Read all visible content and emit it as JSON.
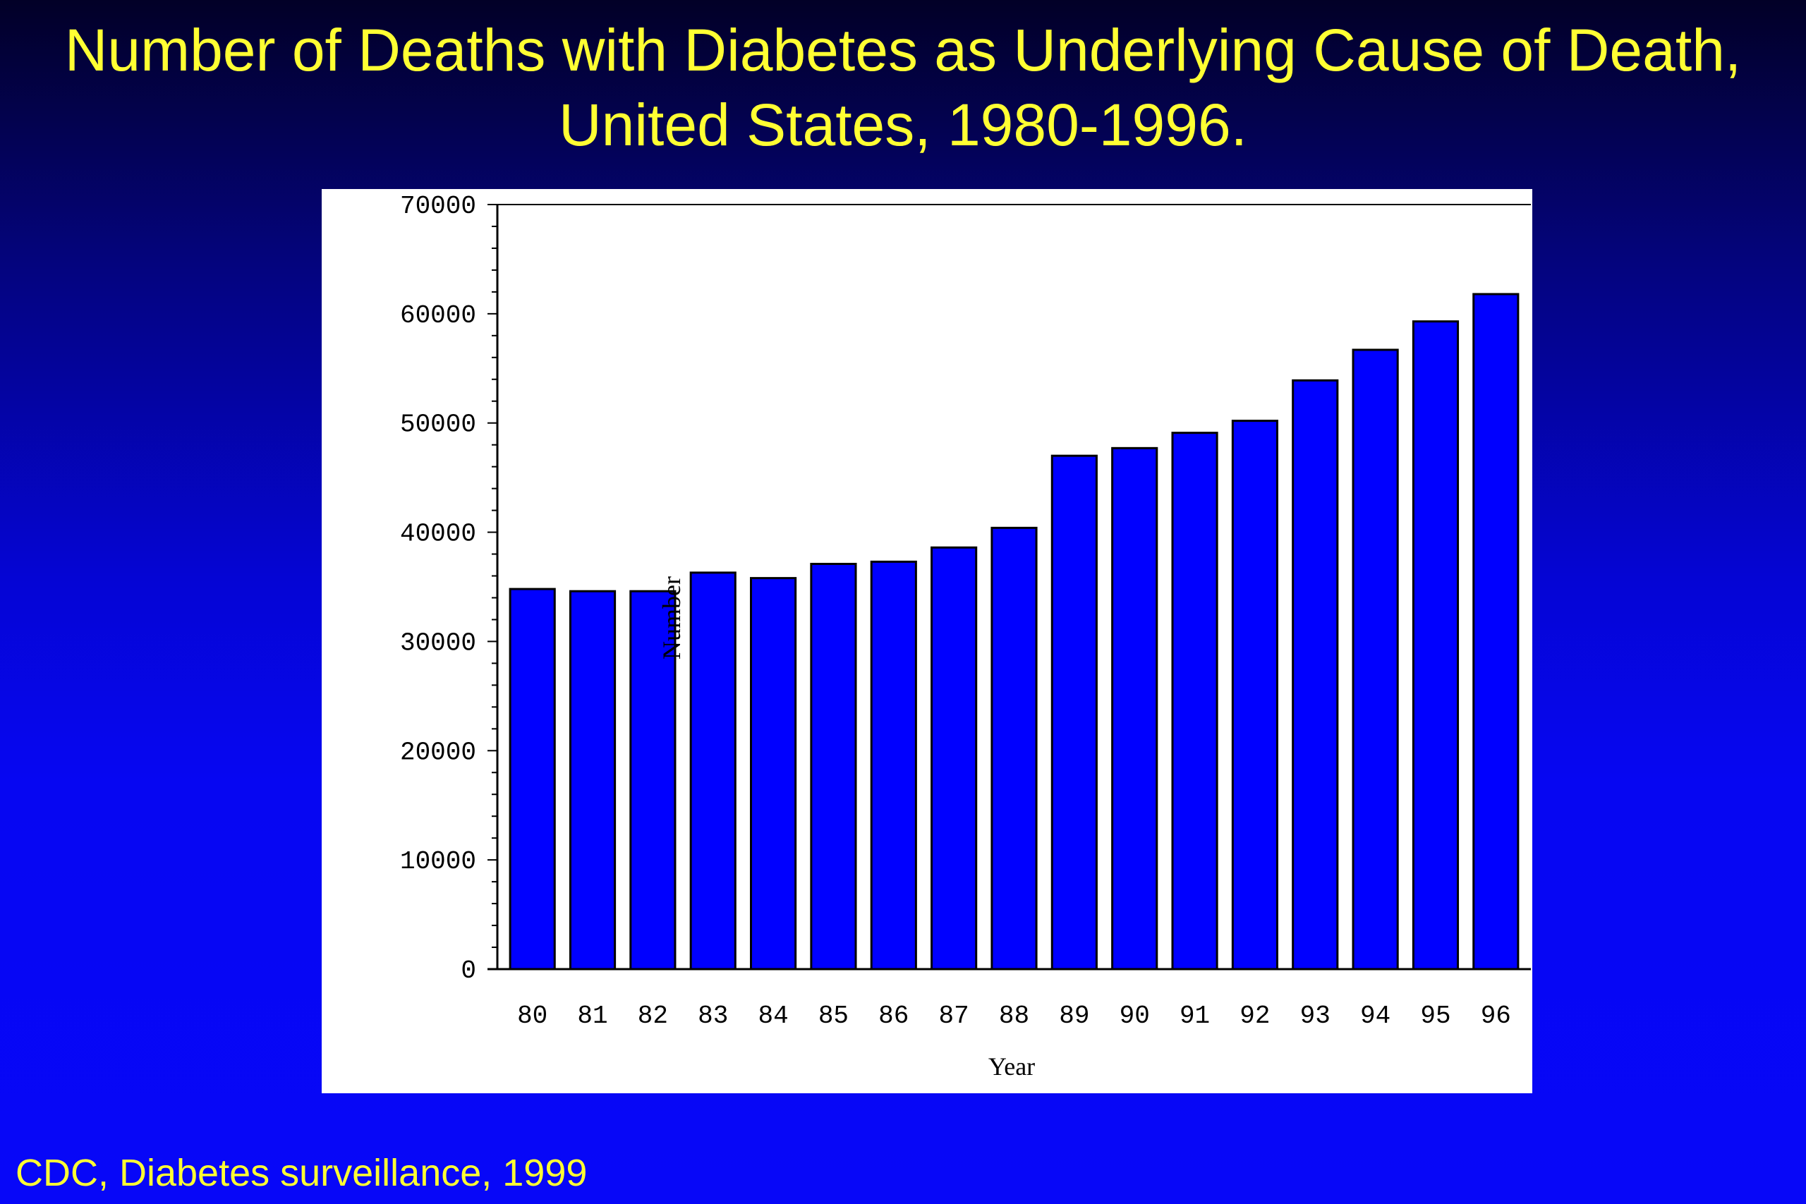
{
  "title": {
    "line1": "Number of Deaths with Diabetes as Underlying Cause of Death,",
    "line2": "United States, 1980-1996."
  },
  "source": "CDC, Diabetes surveillance, 1999",
  "colors": {
    "bar": "#0000ff",
    "title_text": "#ffff33",
    "panel": "#ffffff"
  },
  "chart_data": {
    "type": "bar",
    "xlabel": "Year",
    "ylabel": "Number",
    "ylim": [
      0,
      70000
    ],
    "yticks": [
      "0",
      "10000",
      "20000",
      "30000",
      "40000",
      "50000",
      "60000",
      "70000"
    ],
    "categories": [
      "80",
      "81",
      "82",
      "83",
      "84",
      "85",
      "86",
      "87",
      "88",
      "89",
      "90",
      "91",
      "92",
      "93",
      "94",
      "95",
      "96"
    ],
    "values": [
      34800,
      34600,
      34600,
      36300,
      35800,
      37100,
      37300,
      38600,
      40400,
      47000,
      47700,
      49100,
      50200,
      53900,
      56700,
      59300,
      61800
    ],
    "grid": false,
    "legend": "none"
  }
}
